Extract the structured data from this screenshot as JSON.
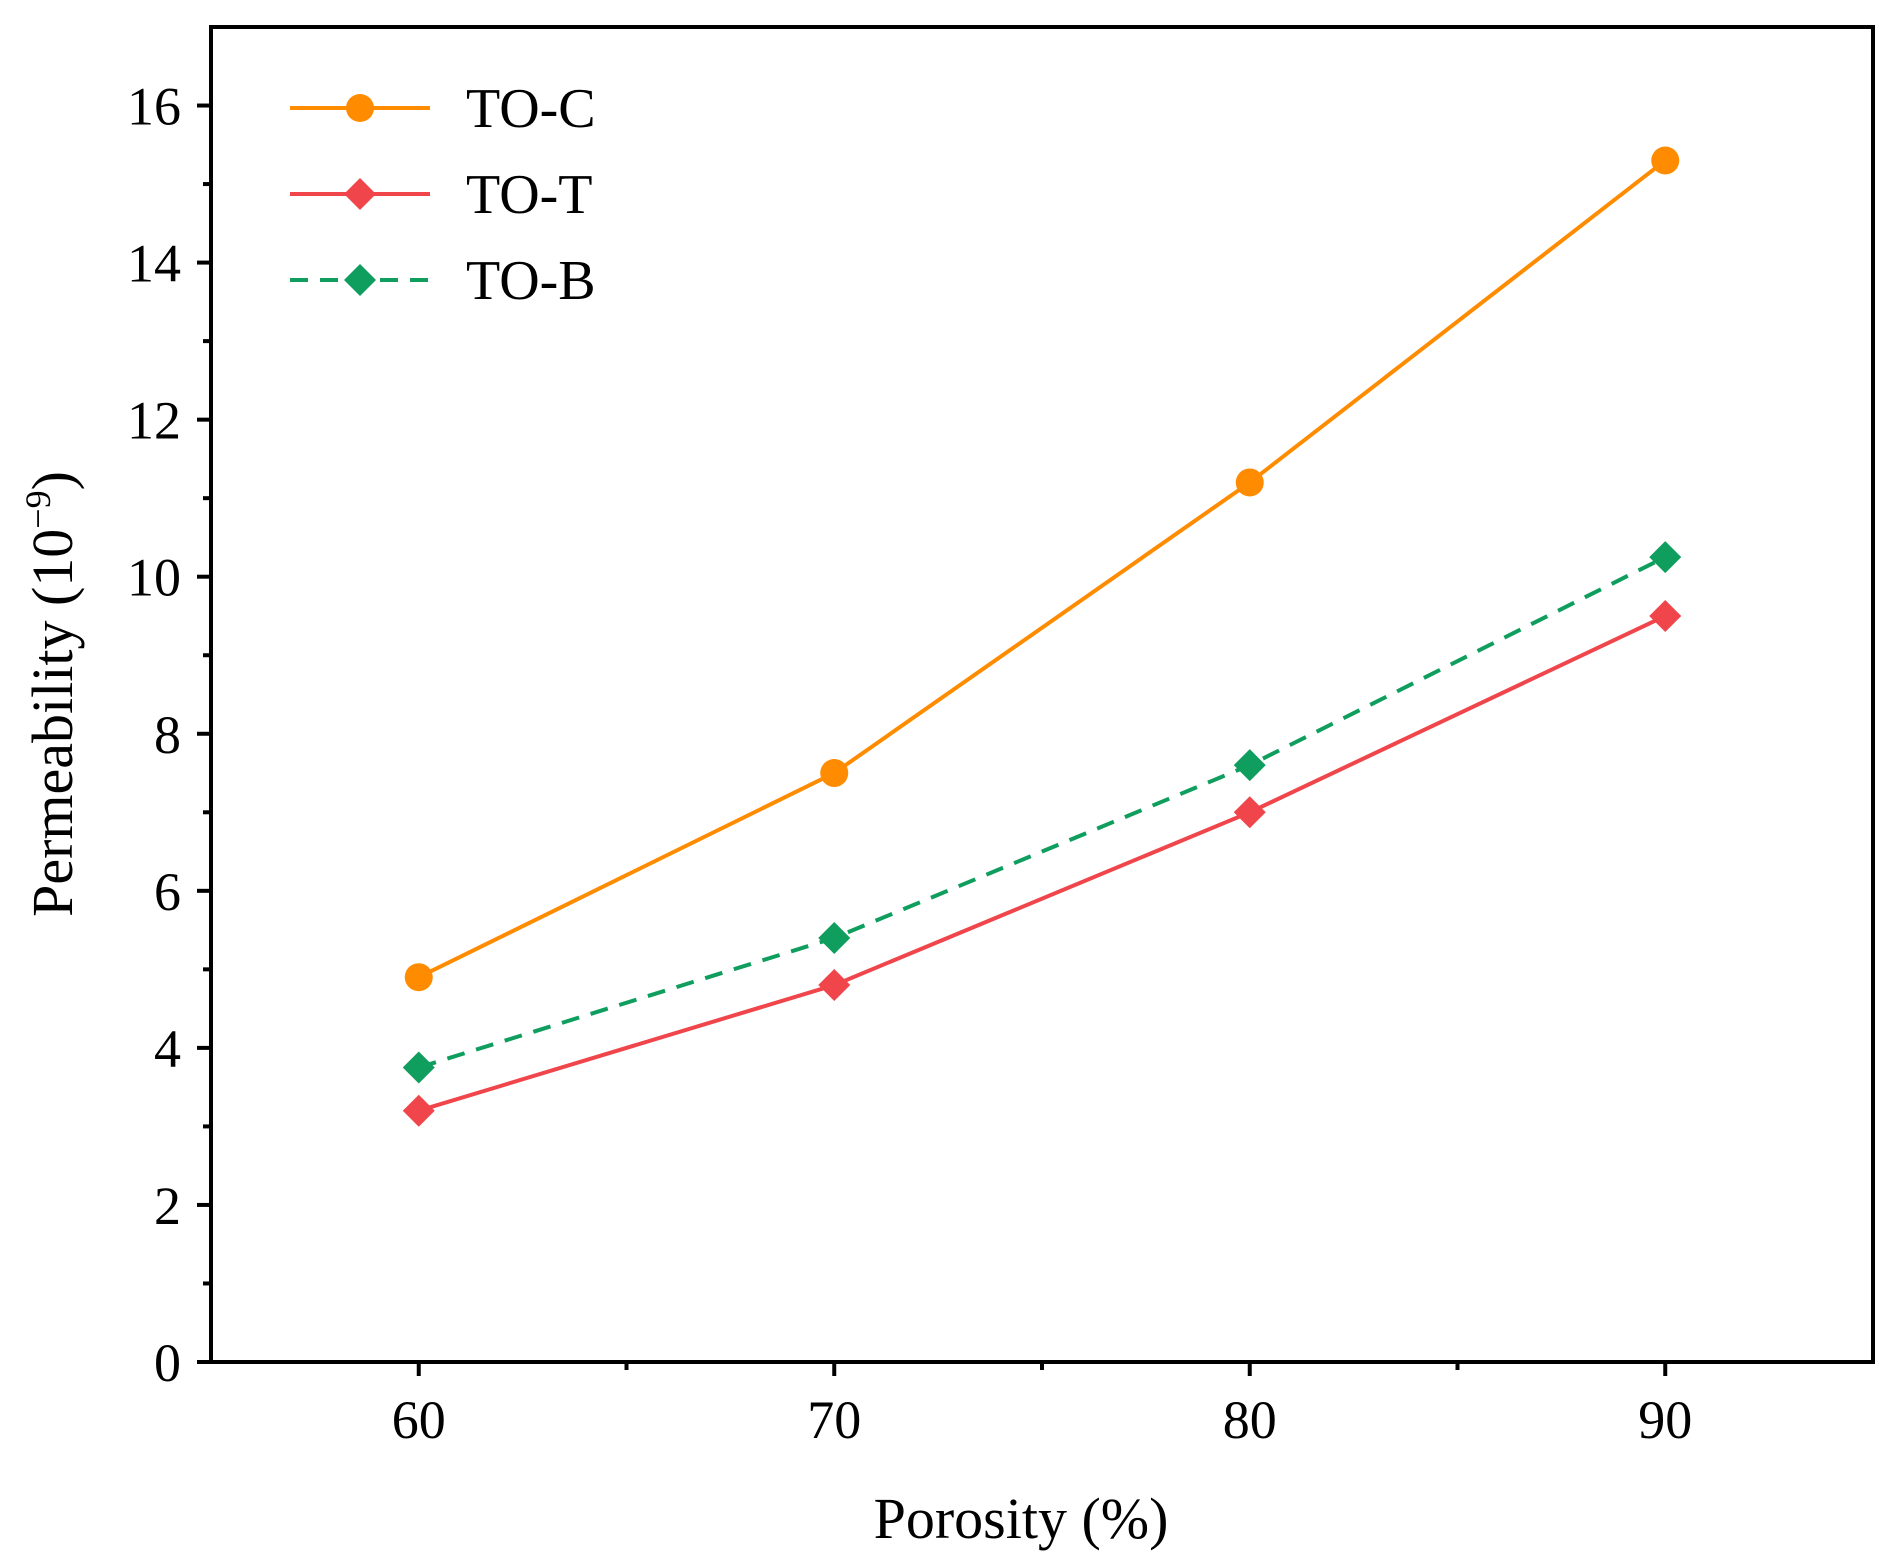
{
  "chart_data": {
    "type": "line",
    "xlabel": "Porosity (%)",
    "ylabel": {
      "base": "Permeability (10",
      "exponent": "−9",
      "close": ")"
    },
    "x": [
      60,
      70,
      80,
      90
    ],
    "xlim": [
      55,
      95
    ],
    "ylim": [
      0,
      17
    ],
    "xticks": [
      60,
      70,
      80,
      90
    ],
    "xticks_minor": [
      65,
      75,
      85
    ],
    "yticks": [
      0,
      2,
      4,
      6,
      8,
      10,
      12,
      14,
      16
    ],
    "yticks_minor": [
      1,
      3,
      5,
      7,
      9,
      11,
      13,
      15
    ],
    "grid": false,
    "legend_position": "top-left",
    "series": [
      {
        "name": "TO-C",
        "values": [
          4.9,
          7.5,
          11.2,
          15.3
        ],
        "color": "#FF8C00",
        "marker": "circle",
        "line": "solid"
      },
      {
        "name": "TO-T",
        "values": [
          3.2,
          4.8,
          7.0,
          9.5
        ],
        "color": "#F0454B",
        "marker": "diamond",
        "line": "solid"
      },
      {
        "name": "TO-B",
        "values": [
          3.75,
          5.4,
          7.6,
          10.25
        ],
        "color": "#0F9E5E",
        "marker": "diamond",
        "line": "dashed"
      }
    ]
  }
}
